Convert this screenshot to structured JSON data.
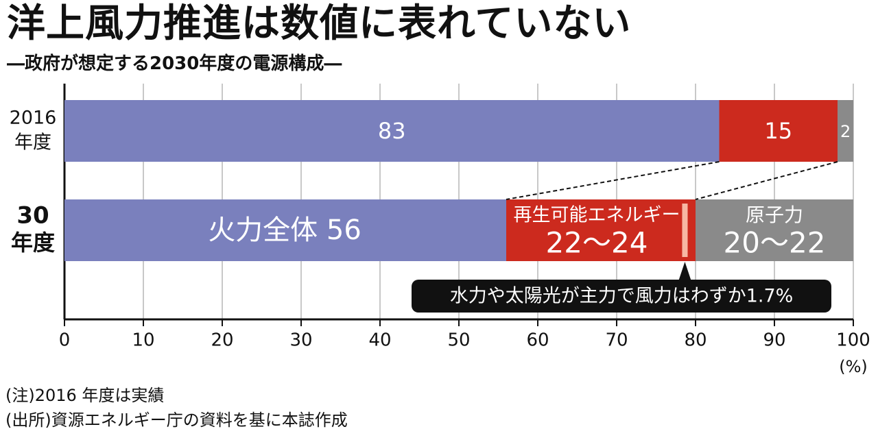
{
  "title": "洋上風力推進は数値に表れていない",
  "subtitle": "―政府が想定する2030年度の電源構成―",
  "chart_data": {
    "type": "bar",
    "orientation": "horizontal",
    "stacked": true,
    "xlim": [
      0,
      100
    ],
    "x_ticks": [
      "0",
      "10",
      "20",
      "30",
      "40",
      "50",
      "60",
      "70",
      "80",
      "90",
      "100"
    ],
    "x_unit": "(%)",
    "grid": true,
    "rows": [
      {
        "label_lines": [
          "2016",
          "年度"
        ],
        "bold": false,
        "segments": [
          {
            "start": 0,
            "end": 83,
            "value": 83,
            "label_lines": [
              "83"
            ],
            "color": "#7a80bd"
          },
          {
            "start": 83,
            "end": 98,
            "value": 15,
            "label_lines": [
              "15"
            ],
            "color": "#cc2a1e"
          },
          {
            "start": 98,
            "end": 100,
            "value": 2,
            "label_lines": [
              "2"
            ],
            "color": "#8a8a8a"
          }
        ]
      },
      {
        "label_lines": [
          "30",
          "年度"
        ],
        "bold": true,
        "segments": [
          {
            "start": 0,
            "end": 56,
            "value": 56,
            "label_lines": [
              "火力全体 56"
            ],
            "color": "#7a80bd"
          },
          {
            "start": 56,
            "end": 80,
            "value": "22～24",
            "label_lines": [
              "再生可能エネルギー",
              "22～24"
            ],
            "color": "#cc2a1e"
          },
          {
            "start": 80,
            "end": 100,
            "value": "20～22",
            "label_lines": [
              "原子力",
              "20～22"
            ],
            "color": "#8a8a8a"
          }
        ]
      }
    ],
    "highlight": {
      "start": 78.3,
      "end": 79.0,
      "value": 1.7,
      "color": "#f7b7a3"
    },
    "callout": "水力や太陽光が主力で風力はわずか1.7%"
  },
  "notes": [
    "(注)2016 年度は実績",
    "(出所)資源エネルギー庁の資料を基に本誌作成"
  ]
}
